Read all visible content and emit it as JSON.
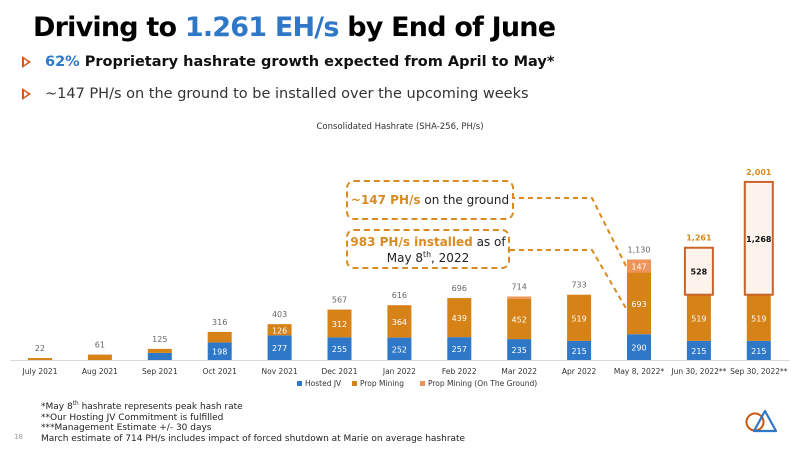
{
  "header": {
    "title_prefix": "Driving to ",
    "title_highlight": "1.261 EH/s",
    "title_suffix": " by End of June"
  },
  "bullets": [
    {
      "highlight": "62%",
      "text": "Proprietary hashrate growth expected from April to May*"
    },
    {
      "text": "~147 PH/s on the ground to be installed over the upcoming weeks"
    }
  ],
  "callouts": {
    "ground": {
      "highlight": "~147 PH/s",
      "text": " on the ground"
    },
    "installed": {
      "highlight": "983 PH/s installed",
      "text_a": " as of",
      "line2_prefix": "May 8",
      "line2_sup": "th",
      "line2_suffix": ", 2022"
    }
  },
  "footnotes": {
    "f1_prefix": "*May 8",
    "f1_sup": "th",
    "f1_suffix": " hashrate represents peak hash rate",
    "f2": "**Our Hosting JV Commitment is fulfilled",
    "f3": "***Management Estimate +/- 30 days",
    "f4": "March estimate of 714 PH/s includes impact of forced shutdown at Marie on average hashrate"
  },
  "page_number": "18",
  "logo_icon": "circle-triangle-logo-icon",
  "colors": {
    "hosted": "#2e78c7",
    "prop": "#d68217",
    "ground": "#ef9458",
    "projected_border": "#c8642a",
    "projected_fill": "#fdf3ec",
    "projected_total": "#d98b22",
    "total_label": "#666666",
    "accent": "#2e78c7",
    "bullet": "#d35a1f"
  },
  "chart_data": {
    "type": "bar",
    "stacked": true,
    "title": "Consolidated Hashrate (SHA-256, PH/s)",
    "xlabel": "",
    "ylabel": "",
    "ylim": [
      0,
      2001
    ],
    "categories": [
      "July 2021",
      "Aug 2021",
      "Sep 2021",
      "Oct 2021",
      "Nov 2021",
      "Dec 2021",
      "Jan 2022",
      "Feb 2022",
      "Mar 2022",
      "Apr 2022",
      "May 8, 2022*",
      "Jun 30, 2022**",
      "Sep 30, 2022**"
    ],
    "series": [
      {
        "name": "Hosted JV",
        "values": [
          0,
          0,
          80,
          198,
          277,
          255,
          252,
          257,
          235,
          215,
          290,
          215,
          215
        ],
        "labels": [
          "",
          "",
          "",
          "198",
          "277",
          "255",
          "252",
          "257",
          "235",
          "215",
          "290",
          "215",
          "215"
        ]
      },
      {
        "name": "Prop Mining",
        "values": [
          22,
          61,
          45,
          118,
          126,
          312,
          364,
          439,
          452,
          519,
          693,
          519,
          519
        ],
        "labels": [
          "",
          "",
          "",
          "",
          "126",
          "312",
          "364",
          "439",
          "452",
          "519",
          "693",
          "519",
          "519"
        ]
      },
      {
        "name": "Prop Mining (On The Ground)",
        "values": [
          0,
          0,
          0,
          0,
          0,
          0,
          0,
          0,
          27,
          0,
          147,
          0,
          0
        ],
        "labels": [
          "",
          "",
          "",
          "",
          "",
          "",
          "",
          "",
          "",
          "",
          "147",
          "",
          ""
        ]
      },
      {
        "name": "Projected",
        "values": [
          0,
          0,
          0,
          0,
          0,
          0,
          0,
          0,
          0,
          0,
          0,
          528,
          1268
        ],
        "labels": [
          "",
          "",
          "",
          "",
          "",
          "",
          "",
          "",
          "",
          "",
          "",
          "528",
          "1,268"
        ]
      }
    ],
    "totals": [
      "22",
      "61",
      "125",
      "316",
      "403",
      "567",
      "616",
      "696",
      "714",
      "733",
      "1,130",
      "1,261",
      "2,001"
    ],
    "legend": [
      "Hosted JV",
      "Prop Mining",
      "Prop Mining (On The Ground)"
    ],
    "legend_position": "bottom",
    "grid": false
  }
}
